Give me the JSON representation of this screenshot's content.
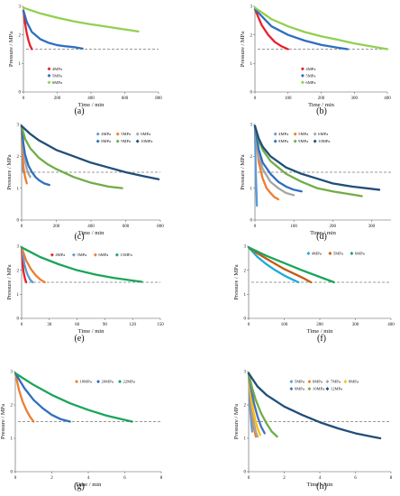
{
  "chart_data": [
    {
      "panel": "(a)",
      "type": "line",
      "xlabel": "Time / min",
      "ylabel": "Pressure / MPa",
      "xlim": [
        0,
        800
      ],
      "ylim": [
        0,
        3
      ],
      "xticks": [
        0,
        200,
        400,
        600,
        800
      ],
      "yticks": [
        0,
        1,
        2,
        3
      ],
      "reference_line": 1.5,
      "legend_layout": "column",
      "legend_pos": [
        0.19,
        0.27
      ],
      "series": [
        {
          "name": "4MPa",
          "color": "#e8202a",
          "x": [
            0,
            10,
            20,
            30,
            40,
            50
          ],
          "y": [
            2.85,
            2.4,
            2.05,
            1.8,
            1.62,
            1.5
          ]
        },
        {
          "name": "5MPa",
          "color": "#2e6fc0",
          "x": [
            0,
            20,
            50,
            100,
            150,
            200,
            250,
            300,
            350
          ],
          "y": [
            2.85,
            2.45,
            2.1,
            1.85,
            1.72,
            1.64,
            1.6,
            1.57,
            1.52
          ]
        },
        {
          "name": "6MPa",
          "color": "#92d050",
          "x": [
            0,
            100,
            200,
            300,
            400,
            500,
            600,
            680
          ],
          "y": [
            2.95,
            2.75,
            2.6,
            2.47,
            2.37,
            2.28,
            2.19,
            2.12
          ]
        }
      ]
    },
    {
      "panel": "(b)",
      "type": "line",
      "xlabel": "Time / min",
      "ylabel": "Pressure / MPa",
      "xlim": [
        0,
        400
      ],
      "ylim": [
        0,
        3
      ],
      "xticks": [
        0,
        100,
        200,
        300,
        400
      ],
      "yticks": [
        0,
        1,
        2,
        3
      ],
      "reference_line": 1.5,
      "legend_layout": "column",
      "legend_pos": [
        0.36,
        0.27
      ],
      "series": [
        {
          "name": "4MPa",
          "color": "#e8202a",
          "x": [
            0,
            20,
            40,
            60,
            80,
            100
          ],
          "y": [
            2.9,
            2.35,
            2.0,
            1.75,
            1.6,
            1.5
          ]
        },
        {
          "name": "5MPa",
          "color": "#2e6fc0",
          "x": [
            0,
            50,
            100,
            150,
            200,
            250,
            280
          ],
          "y": [
            2.9,
            2.3,
            2.0,
            1.8,
            1.65,
            1.55,
            1.5
          ]
        },
        {
          "name": "6MPa",
          "color": "#92d050",
          "x": [
            0,
            50,
            100,
            150,
            200,
            250,
            300,
            350,
            400
          ],
          "y": [
            2.95,
            2.55,
            2.3,
            2.1,
            1.95,
            1.83,
            1.7,
            1.6,
            1.5
          ]
        }
      ]
    },
    {
      "panel": "(c)",
      "type": "line",
      "xlabel": "Time / min",
      "ylabel": "Pressure / MPa",
      "xlim": [
        0,
        800
      ],
      "ylim": [
        0,
        3
      ],
      "xticks": [
        0,
        200,
        400,
        600,
        800
      ],
      "yticks": [
        0,
        1,
        2,
        3
      ],
      "reference_line": 1.5,
      "legend_layout": "grid3",
      "legend_pos": [
        0.55,
        0.9
      ],
      "series": [
        {
          "name": "4MPa",
          "color": "#5b9bd5",
          "x": [
            0,
            2,
            4,
            6,
            8,
            10
          ],
          "y": [
            2.95,
            2.3,
            1.95,
            1.75,
            1.62,
            1.5
          ]
        },
        {
          "name": "5MPa",
          "color": "#ed7d31",
          "x": [
            0,
            5,
            10,
            15,
            20,
            25,
            30
          ],
          "y": [
            2.95,
            2.1,
            1.7,
            1.5,
            1.35,
            1.25,
            1.15
          ]
        },
        {
          "name": "6MPa",
          "color": "#a5a5a5",
          "x": [
            0,
            10,
            20,
            30,
            40,
            50
          ],
          "y": [
            2.95,
            2.2,
            1.85,
            1.6,
            1.45,
            1.35
          ]
        },
        {
          "name": "8MPa",
          "color": "#2e6fc0",
          "x": [
            0,
            10,
            20,
            40,
            60,
            80,
            100,
            130,
            160
          ],
          "y": [
            2.95,
            2.4,
            2.05,
            1.7,
            1.5,
            1.35,
            1.25,
            1.15,
            1.1
          ]
        },
        {
          "name": "9MPa",
          "color": "#70ad47",
          "x": [
            0,
            20,
            50,
            100,
            150,
            200,
            300,
            400,
            500,
            580
          ],
          "y": [
            2.95,
            2.55,
            2.25,
            1.95,
            1.75,
            1.6,
            1.35,
            1.17,
            1.05,
            1.0
          ]
        },
        {
          "name": "10MPa",
          "color": "#1f4e79",
          "x": [
            0,
            50,
            100,
            200,
            300,
            400,
            500,
            600,
            700,
            790
          ],
          "y": [
            2.95,
            2.7,
            2.5,
            2.2,
            2.0,
            1.8,
            1.65,
            1.5,
            1.38,
            1.28
          ]
        }
      ]
    },
    {
      "panel": "(d)",
      "type": "line",
      "xlabel": "Time / min",
      "ylabel": "Pressure / MPa",
      "xlim": [
        0,
        350
      ],
      "ylim": [
        0,
        3
      ],
      "xticks": [
        0,
        100,
        200,
        300
      ],
      "yticks": [
        0,
        1,
        2,
        3
      ],
      "reference_line": 1.5,
      "legend_layout": "grid3",
      "legend_pos": [
        0.15,
        0.9
      ],
      "series": [
        {
          "name": "4MPa",
          "color": "#5b9bd5",
          "x": [
            0,
            1,
            2,
            3,
            4,
            5
          ],
          "y": [
            2.95,
            2.2,
            1.6,
            1.2,
            0.85,
            0.45
          ]
        },
        {
          "name": "5MPa",
          "color": "#ed7d31",
          "x": [
            0,
            10,
            20,
            30,
            40,
            50,
            60
          ],
          "y": [
            2.95,
            1.8,
            1.3,
            1.0,
            0.85,
            0.72,
            0.65
          ]
        },
        {
          "name": "6MPa",
          "color": "#a5a5a5",
          "x": [
            0,
            10,
            20,
            40,
            60,
            80,
            100
          ],
          "y": [
            2.95,
            2.0,
            1.6,
            1.2,
            1.0,
            0.85,
            0.78
          ]
        },
        {
          "name": "8MPa",
          "color": "#2e6fc0",
          "x": [
            0,
            10,
            20,
            40,
            60,
            80,
            100,
            120
          ],
          "y": [
            2.95,
            2.2,
            1.8,
            1.45,
            1.2,
            1.05,
            0.95,
            0.9
          ]
        },
        {
          "name": "9MPa",
          "color": "#70ad47",
          "x": [
            0,
            10,
            20,
            40,
            80,
            120,
            160,
            200,
            240,
            275
          ],
          "y": [
            2.95,
            2.5,
            2.2,
            1.85,
            1.45,
            1.2,
            1.0,
            0.9,
            0.82,
            0.75
          ]
        },
        {
          "name": "10MPa",
          "color": "#1f4e79",
          "x": [
            0,
            10,
            20,
            40,
            80,
            120,
            160,
            200,
            250,
            320
          ],
          "y": [
            2.95,
            2.55,
            2.3,
            2.0,
            1.65,
            1.45,
            1.3,
            1.15,
            1.05,
            0.95
          ]
        }
      ]
    },
    {
      "panel": "(e)",
      "type": "line",
      "xlabel": "Time / min",
      "ylabel": "Pressure / MPa",
      "xlim": [
        0,
        150
      ],
      "ylim": [
        0,
        3
      ],
      "xticks": [
        0,
        30,
        60,
        90,
        120,
        150
      ],
      "yticks": [
        0,
        1,
        2,
        3
      ],
      "reference_line": 1.5,
      "legend_layout": "row",
      "legend_pos": [
        0.22,
        0.88
      ],
      "series": [
        {
          "name": "4MPa",
          "color": "#e8202a",
          "x": [
            0,
            1,
            2,
            3,
            4,
            5
          ],
          "y": [
            2.95,
            2.3,
            1.95,
            1.75,
            1.6,
            1.5
          ]
        },
        {
          "name": "5MPa",
          "color": "#5b9bd5",
          "x": [
            0,
            3,
            6,
            9,
            12
          ],
          "y": [
            2.95,
            2.25,
            1.85,
            1.62,
            1.5
          ]
        },
        {
          "name": "6MPa",
          "color": "#ed7d31",
          "x": [
            0,
            5,
            10,
            15,
            20,
            25
          ],
          "y": [
            2.95,
            2.4,
            2.05,
            1.8,
            1.62,
            1.5
          ]
        },
        {
          "name": "15MPa",
          "color": "#1aa55a",
          "x": [
            0,
            10,
            20,
            40,
            60,
            80,
            100,
            120,
            130
          ],
          "y": [
            2.95,
            2.75,
            2.55,
            2.25,
            2.0,
            1.82,
            1.68,
            1.57,
            1.52
          ]
        }
      ]
    },
    {
      "panel": "(f)",
      "type": "line",
      "xlabel": "Time / min",
      "ylabel": "Pressure / MPa",
      "xlim": [
        0,
        400
      ],
      "ylim": [
        0,
        3
      ],
      "xticks": [
        0,
        100,
        200,
        300,
        400
      ],
      "yticks": [
        0,
        1,
        2,
        3
      ],
      "reference_line": 1.5,
      "legend_layout": "row",
      "legend_pos": [
        0.42,
        0.9
      ],
      "series": [
        {
          "name": "4MPa",
          "color": "#1eaadf",
          "x": [
            0,
            25,
            50,
            75,
            100,
            125,
            140
          ],
          "y": [
            2.95,
            2.55,
            2.25,
            2.0,
            1.78,
            1.6,
            1.5
          ]
        },
        {
          "name": "5MPa",
          "color": "#c55a11",
          "x": [
            0,
            25,
            50,
            100,
            150,
            175
          ],
          "y": [
            2.95,
            2.7,
            2.48,
            2.05,
            1.7,
            1.5
          ]
        },
        {
          "name": "6MPa",
          "color": "#1aa55a",
          "x": [
            0,
            50,
            100,
            150,
            200,
            240
          ],
          "y": [
            2.95,
            2.6,
            2.3,
            2.0,
            1.72,
            1.5
          ]
        }
      ]
    },
    {
      "panel": "(g)",
      "type": "line",
      "xlabel": "Time / min",
      "ylabel": "Pressure / MPa",
      "xlim": [
        0,
        8
      ],
      "ylim": [
        0,
        3
      ],
      "xticks": [
        0,
        2,
        4,
        6,
        8
      ],
      "yticks": [
        0,
        1,
        2,
        3
      ],
      "reference_line": 1.5,
      "legend_layout": "row",
      "legend_pos": [
        0.42,
        0.9
      ],
      "series": [
        {
          "name": "18MPa",
          "color": "#ed7d31",
          "x": [
            0,
            0.2,
            0.4,
            0.6,
            0.8,
            1.0
          ],
          "y": [
            2.95,
            2.45,
            2.1,
            1.85,
            1.65,
            1.5
          ]
        },
        {
          "name": "20MPa",
          "color": "#2e6fc0",
          "x": [
            0,
            0.5,
            1.0,
            1.5,
            2.0,
            2.5,
            3.0
          ],
          "y": [
            2.95,
            2.5,
            2.15,
            1.9,
            1.7,
            1.57,
            1.5
          ]
        },
        {
          "name": "22MPa",
          "color": "#1aa55a",
          "x": [
            0,
            1,
            2,
            3,
            4,
            5,
            6,
            6.4
          ],
          "y": [
            2.95,
            2.6,
            2.3,
            2.05,
            1.85,
            1.68,
            1.55,
            1.5
          ]
        }
      ]
    },
    {
      "panel": "(h)",
      "type": "line",
      "xlabel": "Time / min",
      "ylabel": "Pressure / MPa",
      "xlim": [
        0,
        8
      ],
      "ylim": [
        0,
        3
      ],
      "xticks": [
        0,
        2,
        4,
        6,
        8
      ],
      "yticks": [
        0,
        1,
        2,
        3
      ],
      "reference_line": 1.5,
      "legend_layout": "grid4",
      "legend_pos": [
        0.3,
        0.9
      ],
      "series": [
        {
          "name": "5MPa",
          "color": "#5b9bd5",
          "x": [
            0,
            0.05,
            0.1,
            0.15,
            0.2
          ],
          "y": [
            2.95,
            2.3,
            1.8,
            1.45,
            1.2
          ]
        },
        {
          "name": "6MPa",
          "color": "#ed7d31",
          "x": [
            0,
            0.1,
            0.2,
            0.3,
            0.4
          ],
          "y": [
            2.95,
            2.2,
            1.65,
            1.3,
            1.05
          ]
        },
        {
          "name": "7MPa",
          "color": "#a5a5a5",
          "x": [
            0,
            0.1,
            0.2,
            0.3,
            0.4,
            0.5
          ],
          "y": [
            2.95,
            2.3,
            1.8,
            1.45,
            1.2,
            1.05
          ]
        },
        {
          "name": "8MPa",
          "color": "#ffc000",
          "x": [
            0,
            0.1,
            0.2,
            0.35,
            0.5,
            0.65
          ],
          "y": [
            2.95,
            2.4,
            2.0,
            1.6,
            1.3,
            1.1
          ]
        },
        {
          "name": "9MPa",
          "color": "#4472c4",
          "x": [
            0,
            0.15,
            0.3,
            0.5,
            0.7,
            0.9
          ],
          "y": [
            2.95,
            2.45,
            2.05,
            1.65,
            1.35,
            1.15
          ]
        },
        {
          "name": "10MPa",
          "color": "#70ad47",
          "x": [
            0,
            0.2,
            0.4,
            0.7,
            1.0,
            1.3,
            1.6
          ],
          "y": [
            2.95,
            2.5,
            2.15,
            1.75,
            1.45,
            1.2,
            1.05
          ]
        },
        {
          "name": "12MPa",
          "color": "#1f4e79",
          "x": [
            0,
            0.5,
            1,
            2,
            3,
            4,
            5,
            6,
            7,
            7.4
          ],
          "y": [
            2.95,
            2.55,
            2.3,
            1.95,
            1.7,
            1.48,
            1.3,
            1.15,
            1.04,
            1.0
          ]
        }
      ]
    }
  ]
}
